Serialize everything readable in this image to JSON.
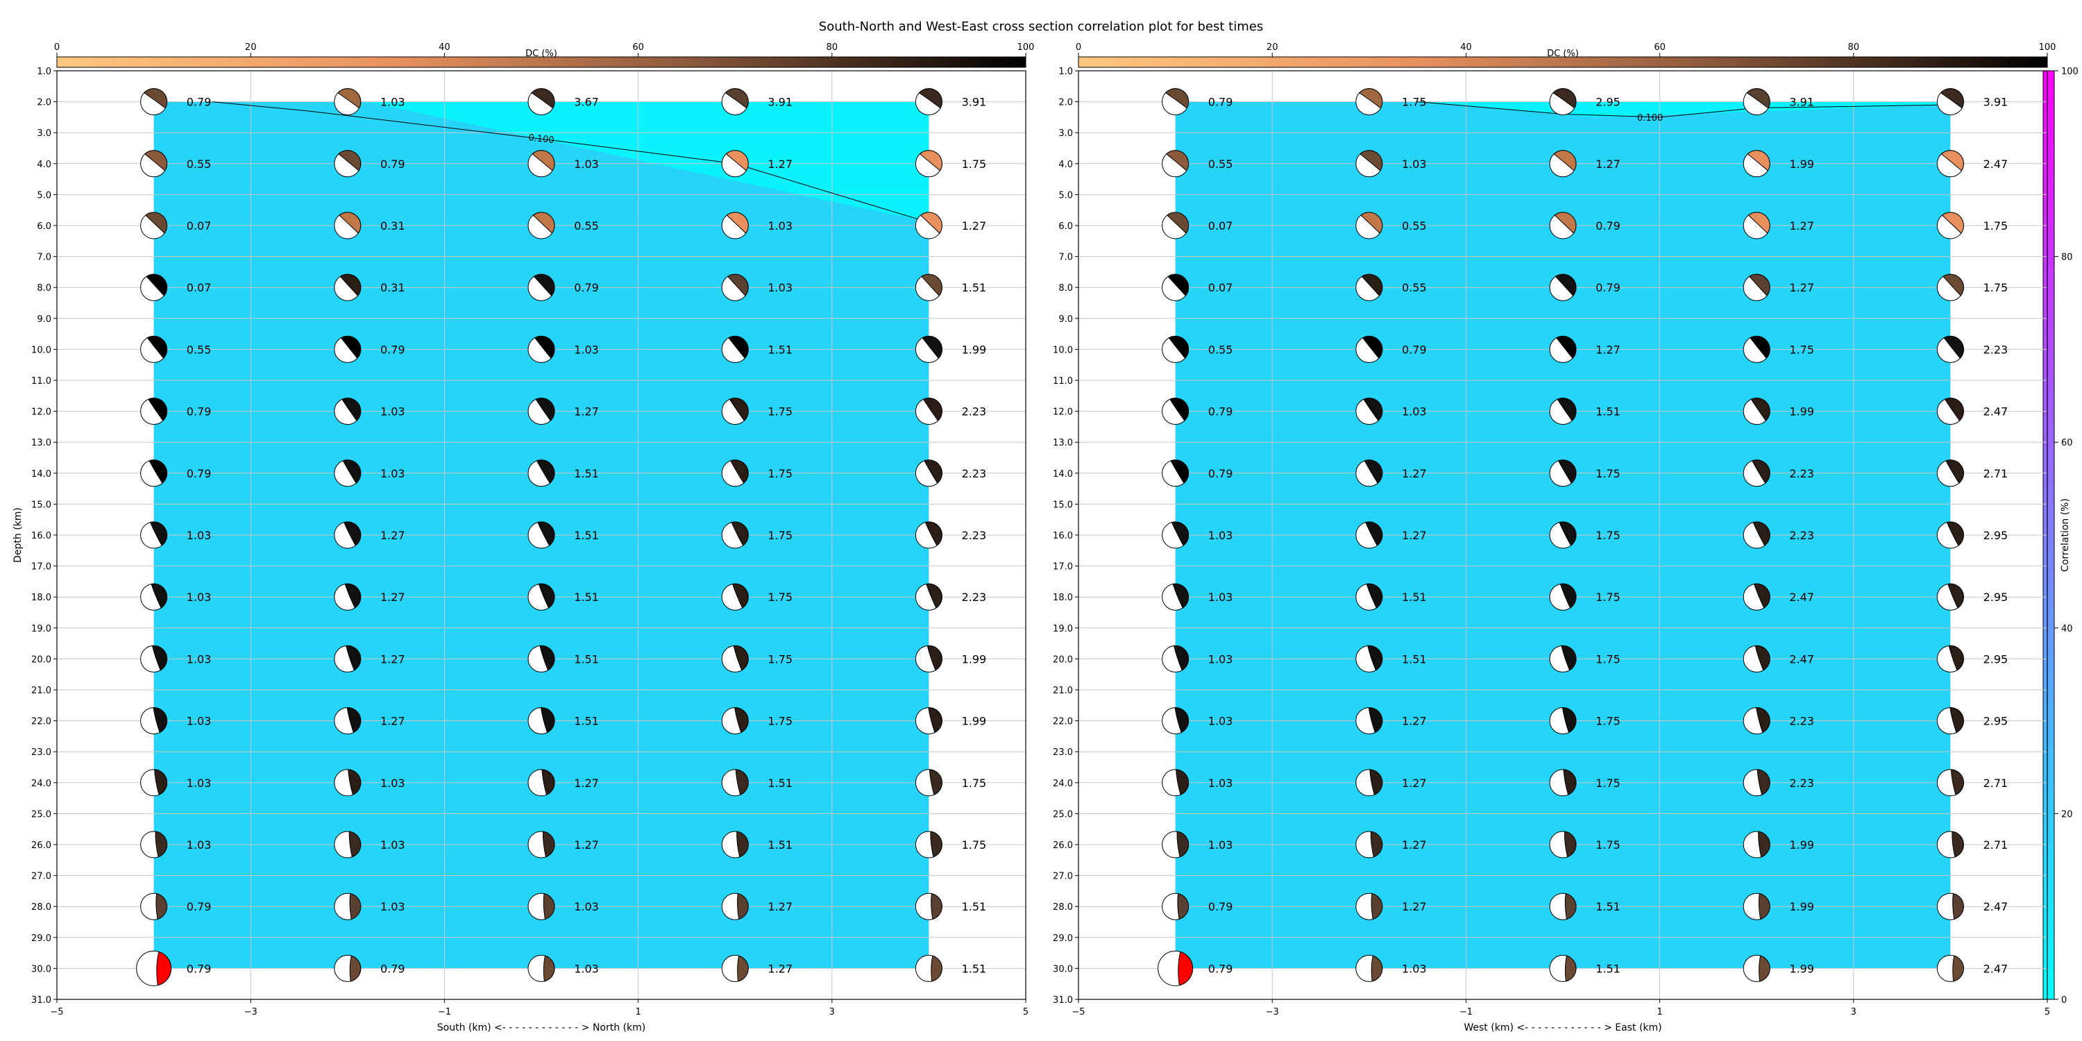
{
  "figure": {
    "title": "South-North and West-East cross section correlation plot for best times"
  },
  "colorbars": {
    "dc": {
      "label": "DC (%)",
      "range": [
        0,
        100
      ],
      "ticks": [
        "0",
        "20",
        "40",
        "60",
        "80",
        "100"
      ]
    },
    "correlation": {
      "label": "Correlation (%)",
      "range": [
        0,
        100
      ],
      "ticks": [
        "0",
        "20",
        "40",
        "60",
        "80",
        "100"
      ]
    }
  },
  "chart_data": [
    {
      "type": "heatmap",
      "name": "south-north",
      "xlabel": "South (km) <- - - - - - - - - - - - > North (km)",
      "ylabel": "Depth (km)",
      "xlim": [
        -5,
        5
      ],
      "ylim": [
        31,
        1
      ],
      "xticks": [
        "-5",
        "-3",
        "-1",
        "1",
        "3",
        "5"
      ],
      "yticks": [
        "1.0",
        "2.0",
        "3.0",
        "4.0",
        "5.0",
        "6.0",
        "7.0",
        "8.0",
        "9.0",
        "10.0",
        "11.0",
        "12.0",
        "13.0",
        "14.0",
        "15.0",
        "16.0",
        "17.0",
        "18.0",
        "19.0",
        "20.0",
        "21.0",
        "22.0",
        "23.0",
        "24.0",
        "25.0",
        "26.0",
        "27.0",
        "28.0",
        "29.0",
        "30.0",
        "31.0"
      ],
      "x": [
        -4,
        -2,
        0,
        2,
        4
      ],
      "depths": [
        2,
        4,
        6,
        8,
        10,
        12,
        14,
        16,
        18,
        20,
        22,
        24,
        26,
        28,
        30
      ],
      "contour_label": "0.100",
      "values": [
        [
          "0.79",
          "1.03",
          "3.67",
          "3.91",
          "3.91"
        ],
        [
          "0.55",
          "0.79",
          "1.03",
          "1.27",
          "1.75"
        ],
        [
          "0.07",
          "0.31",
          "0.55",
          "1.03",
          "1.27"
        ],
        [
          "0.07",
          "0.31",
          "0.79",
          "1.03",
          "1.51"
        ],
        [
          "0.55",
          "0.79",
          "1.03",
          "1.51",
          "1.99"
        ],
        [
          "0.79",
          "1.03",
          "1.27",
          "1.75",
          "2.23"
        ],
        [
          "0.79",
          "1.03",
          "1.51",
          "1.75",
          "2.23"
        ],
        [
          "1.03",
          "1.27",
          "1.51",
          "1.75",
          "2.23"
        ],
        [
          "1.03",
          "1.27",
          "1.51",
          "1.75",
          "2.23"
        ],
        [
          "1.03",
          "1.27",
          "1.51",
          "1.75",
          "1.99"
        ],
        [
          "1.03",
          "1.27",
          "1.51",
          "1.75",
          "1.99"
        ],
        [
          "1.03",
          "1.03",
          "1.27",
          "1.51",
          "1.75"
        ],
        [
          "1.03",
          "1.03",
          "1.27",
          "1.51",
          "1.75"
        ],
        [
          "0.79",
          "1.03",
          "1.03",
          "1.27",
          "1.51"
        ],
        [
          "0.79",
          "0.79",
          "1.03",
          "1.27",
          "1.51"
        ]
      ]
    },
    {
      "type": "heatmap",
      "name": "west-east",
      "xlabel": "West (km) <- - - - - - - - - - - - > East (km)",
      "ylabel": "",
      "xlim": [
        -5,
        5
      ],
      "ylim": [
        31,
        1
      ],
      "xticks": [
        "-5",
        "-3",
        "-1",
        "1",
        "3",
        "5"
      ],
      "yticks": [
        "1.0",
        "2.0",
        "3.0",
        "4.0",
        "5.0",
        "6.0",
        "7.0",
        "8.0",
        "9.0",
        "10.0",
        "11.0",
        "12.0",
        "13.0",
        "14.0",
        "15.0",
        "16.0",
        "17.0",
        "18.0",
        "19.0",
        "20.0",
        "21.0",
        "22.0",
        "23.0",
        "24.0",
        "25.0",
        "26.0",
        "27.0",
        "28.0",
        "29.0",
        "30.0",
        "31.0"
      ],
      "x": [
        -4,
        -2,
        0,
        2,
        4
      ],
      "depths": [
        2,
        4,
        6,
        8,
        10,
        12,
        14,
        16,
        18,
        20,
        22,
        24,
        26,
        28,
        30
      ],
      "contour_label": "0.100",
      "values": [
        [
          "0.79",
          "1.75",
          "2.95",
          "3.91",
          "3.91"
        ],
        [
          "0.55",
          "1.03",
          "1.27",
          "1.99",
          "2.47"
        ],
        [
          "0.07",
          "0.55",
          "0.79",
          "1.27",
          "1.75"
        ],
        [
          "0.07",
          "0.55",
          "0.79",
          "1.27",
          "1.75"
        ],
        [
          "0.55",
          "0.79",
          "1.27",
          "1.75",
          "2.23"
        ],
        [
          "0.79",
          "1.03",
          "1.51",
          "1.99",
          "2.47"
        ],
        [
          "0.79",
          "1.27",
          "1.75",
          "2.23",
          "2.71"
        ],
        [
          "1.03",
          "1.27",
          "1.75",
          "2.23",
          "2.95"
        ],
        [
          "1.03",
          "1.51",
          "1.75",
          "2.47",
          "2.95"
        ],
        [
          "1.03",
          "1.51",
          "1.75",
          "2.47",
          "2.95"
        ],
        [
          "1.03",
          "1.27",
          "1.75",
          "2.23",
          "2.95"
        ],
        [
          "1.03",
          "1.27",
          "1.75",
          "2.23",
          "2.71"
        ],
        [
          "1.03",
          "1.27",
          "1.75",
          "1.99",
          "2.71"
        ],
        [
          "0.79",
          "1.27",
          "1.51",
          "1.99",
          "2.47"
        ],
        [
          "0.79",
          "1.03",
          "1.51",
          "1.99",
          "2.47"
        ]
      ]
    }
  ]
}
